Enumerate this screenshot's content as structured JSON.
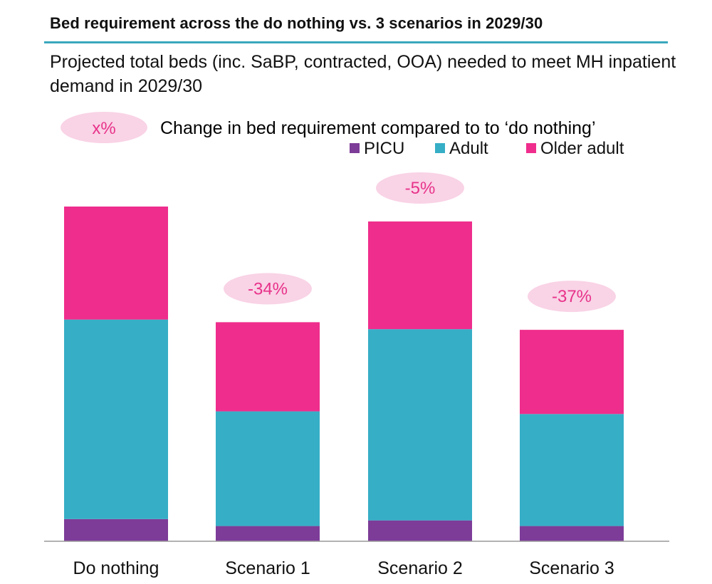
{
  "header": {
    "title": "Bed requirement across the do nothing vs. 3 scenarios in 2029/30",
    "subtitle": "Projected total beds (inc. SaBP, contracted, OOA) needed to meet MH inpatient demand in 2029/30",
    "rule_color": "#3aa7bd"
  },
  "key": {
    "badge_text": "x%",
    "text": "Change in bed requirement compared to to ‘do nothing’"
  },
  "colors": {
    "badge_fill": "#f9d3e6",
    "badge_text": "#e8338a",
    "axis": "#999999"
  },
  "chart_data": {
    "type": "bar",
    "stacked": true,
    "categories": [
      "Do nothing",
      "Scenario 1",
      "Scenario 2",
      "Scenario 3"
    ],
    "series": [
      {
        "name": "PICU",
        "color": "#7d3c98",
        "values": [
          6.7,
          4.6,
          6.3,
          4.6
        ]
      },
      {
        "name": "Adult",
        "color": "#36aec6",
        "values": [
          60.2,
          34.6,
          57.7,
          33.8
        ]
      },
      {
        "name": "Older adult",
        "color": "#ef2d8c",
        "values": [
          34.1,
          26.9,
          32.5,
          25.4
        ]
      }
    ],
    "annotations": [
      "",
      "-34%",
      "-5%",
      "-37%"
    ],
    "legend_position": "top-right",
    "grid": false,
    "ylim": [
      0,
      101
    ]
  }
}
